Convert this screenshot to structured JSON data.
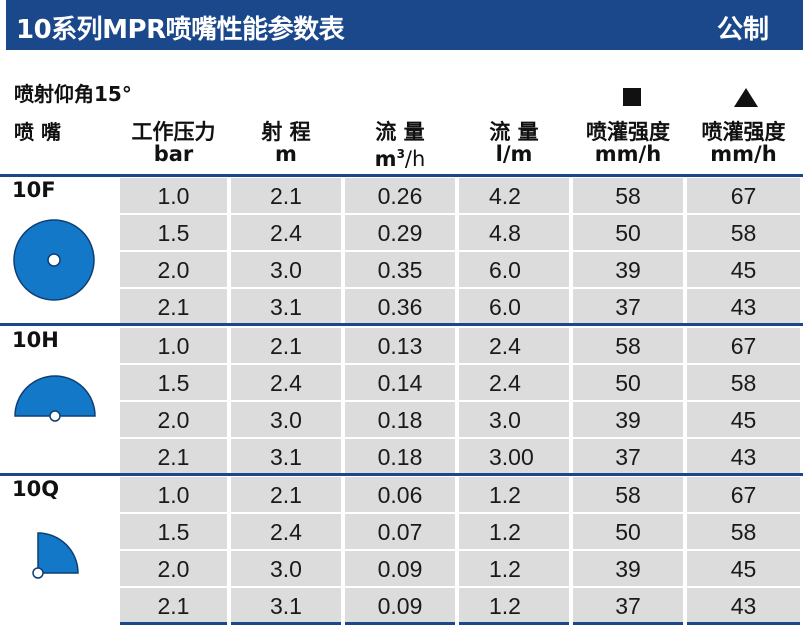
{
  "header": {
    "title": "10系列MPR喷嘴性能参数表",
    "unit": "公制"
  },
  "subtitle": "喷射仰角15°",
  "symbols": {
    "square": "square-icon",
    "triangle": "triangle-icon"
  },
  "columns": {
    "nozzle": "喷 嘴",
    "pressure": {
      "l1": "工作压力",
      "l2": "bar"
    },
    "radius": {
      "l1": "射 程",
      "l2": "m"
    },
    "flow_m3": {
      "l1": "流 量",
      "l2a": "m",
      "l2sup": "3",
      "l2b": "/h"
    },
    "flow_lm": {
      "l1": "流 量",
      "l2": "l/m"
    },
    "precip_sq": {
      "l1": "喷灌强度",
      "l2": "mm/h"
    },
    "precip_tri": {
      "l1": "喷灌强度",
      "l2": "mm/h"
    }
  },
  "nozzles": [
    {
      "name": "10F",
      "rows": [
        [
          "1.0",
          "2.1",
          "0.26",
          "4.2",
          "58",
          "67"
        ],
        [
          "1.5",
          "2.4",
          "0.29",
          "4.8",
          "50",
          "58"
        ],
        [
          "2.0",
          "3.0",
          "0.35",
          "6.0",
          "39",
          "45"
        ],
        [
          "2.1",
          "3.1",
          "0.36",
          "6.0",
          "37",
          "43"
        ]
      ]
    },
    {
      "name": "10H",
      "rows": [
        [
          "1.0",
          "2.1",
          "0.13",
          "2.4",
          "58",
          "67"
        ],
        [
          "1.5",
          "2.4",
          "0.14",
          "2.4",
          "50",
          "58"
        ],
        [
          "2.0",
          "3.0",
          "0.18",
          "3.0",
          "39",
          "45"
        ],
        [
          "2.1",
          "3.1",
          "0.18",
          "3.00",
          "37",
          "43"
        ]
      ]
    },
    {
      "name": "10Q",
      "rows": [
        [
          "1.0",
          "2.1",
          "0.06",
          "1.2",
          "58",
          "67"
        ],
        [
          "1.5",
          "2.4",
          "0.07",
          "1.2",
          "50",
          "58"
        ],
        [
          "2.0",
          "3.0",
          "0.09",
          "1.2",
          "39",
          "45"
        ],
        [
          "2.1",
          "3.1",
          "0.09",
          "1.2",
          "37",
          "43"
        ]
      ]
    }
  ],
  "colors": {
    "brand": "#1b478b",
    "cell": "#dcdcdc",
    "shape": "#1478c8"
  }
}
